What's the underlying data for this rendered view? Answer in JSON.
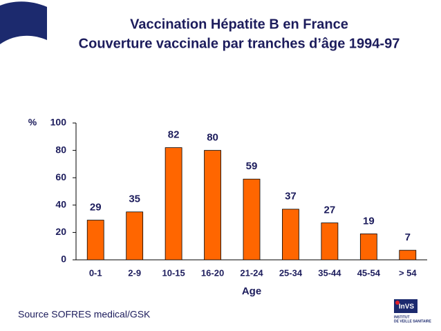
{
  "chart_data": {
    "type": "bar",
    "title": "Vaccination Hépatite B en France",
    "subtitle": "Couverture vaccinale par tranches d’âge 1994-97",
    "ylabel": "%",
    "xlabel": "Age",
    "categories": [
      "0-1",
      "2-9",
      "10-15",
      "16-20",
      "21-24",
      "25-34",
      "35-44",
      "45-54",
      "> 54"
    ],
    "values": [
      29,
      35,
      82,
      80,
      59,
      37,
      27,
      19,
      7
    ],
    "color": "#ff6600",
    "ylim": [
      0,
      100
    ],
    "yticks": [
      0,
      20,
      40,
      60,
      80,
      100
    ]
  },
  "source": "Source SOFRES medical/GSK",
  "logo": {
    "name": "InVS",
    "line1": "INSTITUT",
    "line2": "DE VEILLE SANITAIRE"
  }
}
